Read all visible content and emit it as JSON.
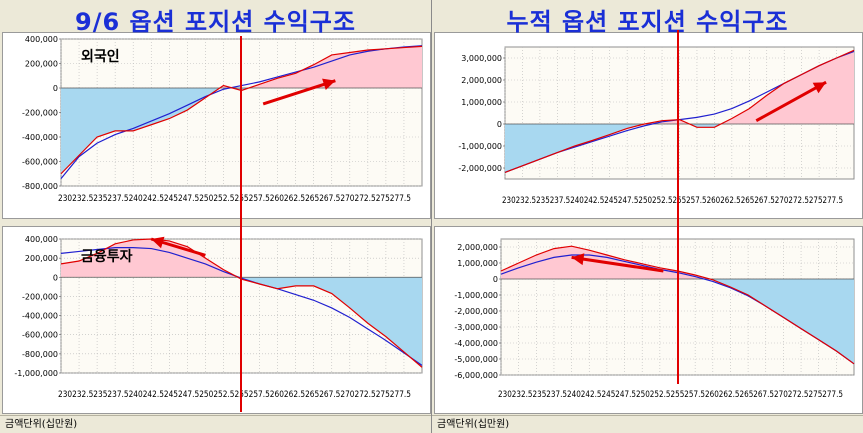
{
  "titles": {
    "left": "9/6 옵션 포지션 수익구조",
    "right": "누적 옵션 포지션 수익구조"
  },
  "status": {
    "left": "금액단위(십만원)",
    "right": "금액단위(십만원)"
  },
  "colors": {
    "positive_fill": "#ffc8d2",
    "negative_fill": "#a8d8f0",
    "red_line": "#e00000",
    "blue_line": "#2020d0",
    "arrow": "#e00000",
    "title": "#1a2fd6"
  },
  "chart_data": [
    {
      "id": "foreign-daily",
      "type": "line",
      "annotation": "외국인",
      "x_tick_labels": [
        "230",
        "232.5",
        "235",
        "237.5",
        "240",
        "242.5",
        "245",
        "247.5",
        "250",
        "252.5",
        "255",
        "257.5",
        "260",
        "262.5",
        "265",
        "267.5",
        "270",
        "272.5",
        "275",
        "277.5"
      ],
      "x_tick_text": "230232.5235237.5240242.5245247.5250252.5255257.5260262.5265267.5270272.5275277.5",
      "y_tick_labels": [
        "400,000",
        "200,000",
        "0",
        "-200,000",
        "-400,000",
        "-600,000",
        "-800,000"
      ],
      "xlim": [
        230,
        280
      ],
      "ylim": [
        -800000,
        400000
      ],
      "x": [
        230,
        232.5,
        235,
        237.5,
        240,
        242.5,
        245,
        247.5,
        250,
        252.5,
        255,
        257.5,
        260,
        262.5,
        265,
        267.5,
        270,
        272.5,
        275,
        277.5,
        280
      ],
      "series": [
        {
          "role": "red",
          "values": [
            -700000,
            -550000,
            -400000,
            -350000,
            -350000,
            -300000,
            -250000,
            -180000,
            -80000,
            20000,
            -20000,
            30000,
            80000,
            120000,
            190000,
            270000,
            290000,
            310000,
            320000,
            330000,
            340000
          ]
        },
        {
          "role": "blue",
          "values": [
            -740000,
            -560000,
            -450000,
            -380000,
            -330000,
            -270000,
            -210000,
            -140000,
            -70000,
            -10000,
            20000,
            50000,
            90000,
            130000,
            170000,
            220000,
            270000,
            300000,
            320000,
            335000,
            345000
          ]
        }
      ],
      "marker_x": 255,
      "arrow": {
        "from": [
          258,
          -130000
        ],
        "to": [
          268,
          60000
        ]
      }
    },
    {
      "id": "financial-daily",
      "type": "line",
      "annotation": "금융투자",
      "x_tick_labels": [
        "230",
        "232.5",
        "235",
        "237.5",
        "240",
        "242.5",
        "245",
        "247.5",
        "250",
        "252.5",
        "255",
        "257.5",
        "260",
        "262.5",
        "265",
        "267.5",
        "270",
        "272.5",
        "275",
        "277.5"
      ],
      "x_tick_text": "230232.5235237.5240242.5245247.5250252.5255257.5260262.5265267.5270272.5275277.5",
      "y_tick_labels": [
        "400,000",
        "200,000",
        "0",
        "-200,000",
        "-400,000",
        "-600,000",
        "-800,000",
        "-1,000,000"
      ],
      "xlim": [
        230,
        280
      ],
      "ylim": [
        -1000000,
        400000
      ],
      "x": [
        230,
        232.5,
        235,
        237.5,
        240,
        242.5,
        245,
        247.5,
        250,
        252.5,
        255,
        257.5,
        260,
        262.5,
        265,
        267.5,
        270,
        272.5,
        275,
        277.5,
        280
      ],
      "series": [
        {
          "role": "red",
          "values": [
            140000,
            170000,
            250000,
            350000,
            390000,
            400000,
            380000,
            320000,
            200000,
            80000,
            -20000,
            -70000,
            -120000,
            -90000,
            -90000,
            -170000,
            -320000,
            -480000,
            -620000,
            -780000,
            -940000
          ]
        },
        {
          "role": "blue",
          "values": [
            250000,
            270000,
            290000,
            310000,
            310000,
            300000,
            260000,
            200000,
            140000,
            60000,
            -10000,
            -70000,
            -120000,
            -180000,
            -240000,
            -320000,
            -420000,
            -540000,
            -660000,
            -790000,
            -920000
          ]
        }
      ],
      "marker_x": 255,
      "arrow": {
        "from": [
          250,
          230000
        ],
        "to": [
          242.5,
          400000
        ]
      }
    },
    {
      "id": "foreign-cumulative",
      "type": "line",
      "x_tick_labels": [
        "230",
        "232.5",
        "235",
        "237.5",
        "240",
        "242.5",
        "245",
        "247.5",
        "250",
        "252.5",
        "255",
        "257.5",
        "260",
        "262.5",
        "265",
        "267.5",
        "270",
        "272.5",
        "275",
        "277.5"
      ],
      "x_tick_text": "230232.5235237.5240242.5245247.5250252.5255257.5260262.5265267.5270272.5275277.5",
      "y_tick_labels": [
        "3,000,000",
        "2,000,000",
        "1,000,000",
        "0",
        "-1,000,000",
        "-2,000,000"
      ],
      "xlim": [
        230,
        280
      ],
      "ylim": [
        -2500000,
        3500000
      ],
      "x": [
        230,
        232.5,
        235,
        237.5,
        240,
        242.5,
        245,
        247.5,
        250,
        252.5,
        255,
        257.5,
        260,
        262.5,
        265,
        267.5,
        270,
        272.5,
        275,
        277.5,
        280
      ],
      "series": [
        {
          "role": "red",
          "values": [
            -2200000,
            -1900000,
            -1600000,
            -1300000,
            -1000000,
            -750000,
            -480000,
            -200000,
            0,
            150000,
            200000,
            -150000,
            -150000,
            250000,
            700000,
            1300000,
            1850000,
            2250000,
            2650000,
            3000000,
            3350000
          ]
        },
        {
          "role": "blue",
          "values": [
            -2200000,
            -1900000,
            -1600000,
            -1300000,
            -1050000,
            -800000,
            -550000,
            -300000,
            -80000,
            100000,
            200000,
            300000,
            450000,
            700000,
            1050000,
            1450000,
            1850000,
            2250000,
            2650000,
            3000000,
            3300000
          ]
        }
      ],
      "marker_x": 255,
      "arrow": {
        "from": [
          266,
          150000
        ],
        "to": [
          276,
          1900000
        ]
      }
    },
    {
      "id": "financial-cumulative",
      "type": "line",
      "x_tick_labels": [
        "230",
        "232.5",
        "235",
        "237.5",
        "240",
        "242.5",
        "245",
        "247.5",
        "250",
        "252.5",
        "255",
        "257.5",
        "260",
        "262.5",
        "265",
        "267.5",
        "270",
        "272.5",
        "275",
        "277.5"
      ],
      "x_tick_text": "230232.5235237.5240242.5245247.5250252.5255257.5260262.5265267.5270272.5275277.5",
      "y_tick_labels": [
        "2,000,000",
        "1,000,000",
        "0",
        "-1,000,000",
        "-2,000,000",
        "-3,000,000",
        "-4,000,000",
        "-5,000,000",
        "-6,000,000"
      ],
      "xlim": [
        230,
        280
      ],
      "ylim": [
        -6000000,
        2500000
      ],
      "x": [
        230,
        232.5,
        235,
        237.5,
        240,
        242.5,
        245,
        247.5,
        250,
        252.5,
        255,
        257.5,
        260,
        262.5,
        265,
        267.5,
        270,
        272.5,
        275,
        277.5,
        280
      ],
      "series": [
        {
          "role": "red",
          "values": [
            500000,
            1000000,
            1500000,
            1900000,
            2050000,
            1800000,
            1500000,
            1200000,
            950000,
            700000,
            500000,
            250000,
            -50000,
            -500000,
            -1000000,
            -1700000,
            -2400000,
            -3100000,
            -3800000,
            -4500000,
            -5300000
          ]
        },
        {
          "role": "blue",
          "values": [
            300000,
            700000,
            1050000,
            1350000,
            1500000,
            1500000,
            1350000,
            1100000,
            850000,
            600000,
            400000,
            150000,
            -150000,
            -550000,
            -1050000,
            -1700000,
            -2400000,
            -3100000,
            -3800000,
            -4500000,
            -5300000
          ]
        }
      ],
      "marker_x": 255,
      "arrow": {
        "from": [
          253,
          500000
        ],
        "to": [
          240,
          1350000
        ]
      }
    }
  ]
}
